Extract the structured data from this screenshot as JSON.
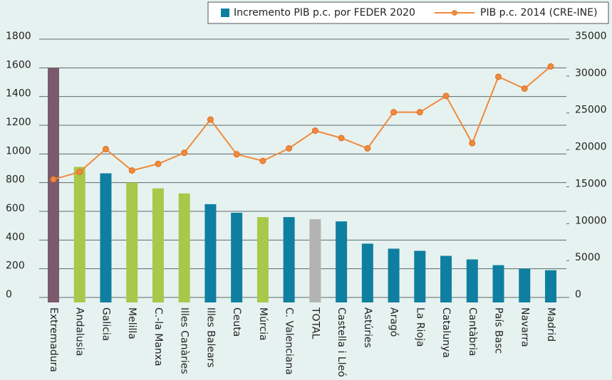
{
  "chart_data": {
    "type": "bar_line",
    "categories": [
      "Extremadura",
      "Andalusia",
      "Galicia",
      "Melilla",
      "C.-la Manxa",
      "Illes Canàries",
      "Illes Balears",
      "Ceuta",
      "Múrcia",
      "C. Valenciana",
      "TOTAL",
      "Castella i Lleó",
      "Astúries",
      "Aragó",
      "La Rioja",
      "Catalunya",
      "Cantàbria",
      "País Basc",
      "Navarra",
      "Madrid"
    ],
    "series": [
      {
        "name": "Incremento PIB p.c. por FEDER 2020",
        "type": "bar",
        "color": "#0f7fa1",
        "colors": [
          "#7b5a6e",
          "#a6c94a",
          "#0f7fa1",
          "#a6c94a",
          "#a6c94a",
          "#a6c94a",
          "#0f7fa1",
          "#0f7fa1",
          "#a6c94a",
          "#0f7fa1",
          "#b3b3b3",
          "#0f7fa1",
          "#0f7fa1",
          "#0f7fa1",
          "#0f7fa1",
          "#0f7fa1",
          "#0f7fa1",
          "#0f7fa1",
          "#0f7fa1",
          "#0f7fa1"
        ],
        "values": [
          1600,
          910,
          865,
          800,
          760,
          725,
          650,
          590,
          560,
          560,
          545,
          530,
          375,
          340,
          325,
          290,
          265,
          225,
          200,
          190
        ]
      },
      {
        "name": "PIB p.c. 2014 (CRE-INE)",
        "type": "line",
        "axis": "y2",
        "color": "#f08a3c",
        "values": [
          16000,
          17000,
          20100,
          17200,
          18100,
          19600,
          24100,
          19400,
          18500,
          20200,
          22600,
          21600,
          20200,
          25100,
          25100,
          27300,
          20900,
          29900,
          28300,
          31300
        ]
      }
    ],
    "ylim": [
      0,
      1800
    ],
    "yticks": [
      0,
      200,
      400,
      600,
      800,
      1000,
      1200,
      1400,
      1600,
      1800
    ],
    "y2lim": [
      0,
      35000
    ],
    "y2ticks": [
      0,
      5000,
      10000,
      15000,
      20000,
      25000,
      30000,
      35000
    ],
    "grid": true,
    "legend": "top-right"
  }
}
